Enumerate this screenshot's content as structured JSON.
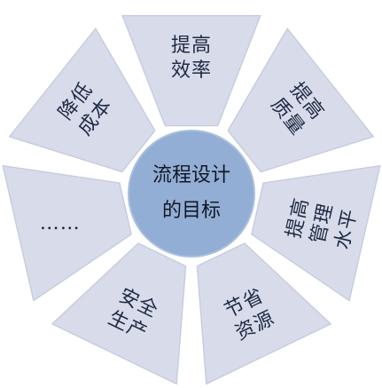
{
  "diagram": {
    "center": {
      "lines": [
        "流程设计",
        "的目标"
      ]
    },
    "segments": [
      {
        "lines": [
          "提高",
          "效率"
        ]
      },
      {
        "lines": [
          "提高",
          "质量"
        ]
      },
      {
        "lines": [
          "提高",
          "管理",
          "水平"
        ]
      },
      {
        "lines": [
          "节省",
          "资源"
        ]
      },
      {
        "lines": [
          "安全",
          "生产"
        ]
      },
      {
        "lines": [
          "……"
        ]
      },
      {
        "lines": [
          "降低",
          "成本"
        ]
      }
    ],
    "colors": {
      "segment": "#d8dcea",
      "hub": "#93aed4",
      "text": "#1f2a44"
    }
  }
}
